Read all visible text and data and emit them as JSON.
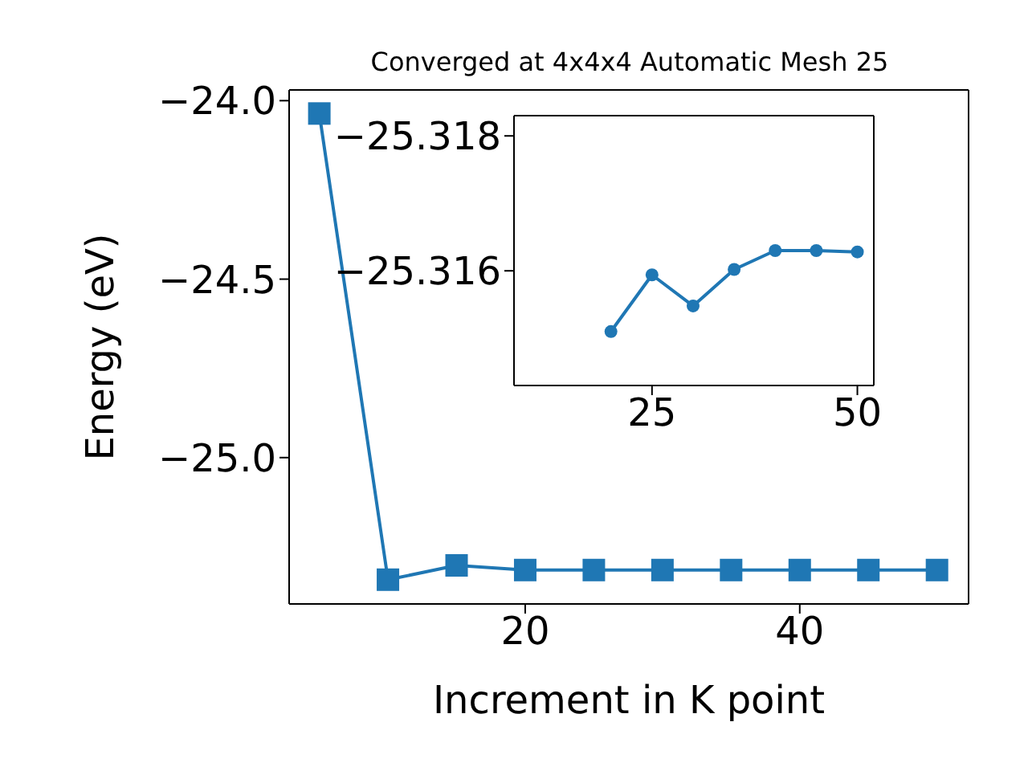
{
  "chart_data": [
    {
      "type": "line",
      "title": "Converged at 4x4x4 Automatic Mesh 25",
      "xlabel": "Increment in K point",
      "ylabel": "Energy (eV)",
      "x": [
        5,
        10,
        15,
        20,
        25,
        30,
        35,
        40,
        45,
        50
      ],
      "series": [
        {
          "color": "#1f77b4",
          "values": [
            -24.036,
            -25.342,
            -25.302,
            -25.315,
            -25.315,
            -25.315,
            -25.315,
            -25.315,
            -25.315,
            -25.315
          ]
        }
      ],
      "xlim": [
        2.8,
        52.3
      ],
      "ylim": [
        -25.41,
        -23.97
      ],
      "xticks": [
        20,
        40
      ],
      "yticks": [
        {
          "value": -24,
          "label": "−24.0"
        },
        {
          "value": -24.5,
          "label": "−24.5"
        },
        {
          "value": -25,
          "label": "−25.0"
        }
      ],
      "marker": "square",
      "line_style": "solid"
    },
    {
      "type": "line",
      "x": [
        20,
        25,
        30,
        35,
        40,
        45,
        50
      ],
      "series": [
        {
          "color": "#1f77b4",
          "values": [
            -25.3151,
            -25.31594,
            -25.31548,
            -25.31602,
            -25.3163,
            -25.3163,
            -25.31628
          ]
        }
      ],
      "xlim": [
        8.2,
        52
      ],
      "ylim": [
        -25.3143,
        -25.3183
      ],
      "xticks": [
        25,
        50
      ],
      "yticks": [
        {
          "value": -25.318,
          "label": "−25.318"
        },
        {
          "value": -25.316,
          "label": "−25.316"
        }
      ],
      "marker": "circle",
      "line_style": "solid"
    }
  ]
}
